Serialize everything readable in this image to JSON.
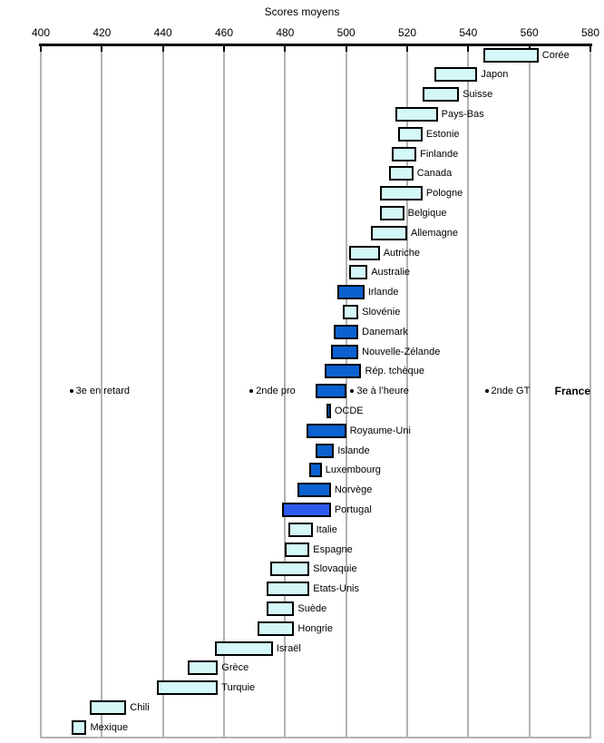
{
  "title": "Scores moyens",
  "axis": {
    "min": 400,
    "max": 580,
    "ticks": [
      400,
      420,
      440,
      460,
      480,
      500,
      520,
      540,
      560,
      580
    ]
  },
  "colors": {
    "light_bar": "#D4F7F8",
    "dark_bar": "#0B61CF",
    "portugal_bar": "#2F5AF0",
    "bar_border": "#000000",
    "grid": "#B3B3B3",
    "axis_line": "#000000",
    "text": "#000000"
  },
  "chart_data": {
    "type": "bar",
    "subtype": "horizontal-interval",
    "title": "Scores moyens",
    "xlim": [
      400,
      580
    ],
    "grid": "vertical-gridlines-every-20",
    "legend": "none",
    "rows": [
      {
        "label": "Corée",
        "low": 545,
        "high": 563,
        "style": "light"
      },
      {
        "label": "Japon",
        "low": 529,
        "high": 543,
        "style": "light"
      },
      {
        "label": "Suisse",
        "low": 525,
        "high": 537,
        "style": "light"
      },
      {
        "label": "Pays-Bas",
        "low": 516,
        "high": 530,
        "style": "light"
      },
      {
        "label": "Estonie",
        "low": 517,
        "high": 525,
        "style": "light"
      },
      {
        "label": "Finlande",
        "low": 515,
        "high": 523,
        "style": "light"
      },
      {
        "label": "Canada",
        "low": 514,
        "high": 522,
        "style": "light"
      },
      {
        "label": "Pologne",
        "low": 511,
        "high": 525,
        "style": "light"
      },
      {
        "label": "Belgique",
        "low": 511,
        "high": 519,
        "style": "light"
      },
      {
        "label": "Allemagne",
        "low": 508,
        "high": 520,
        "style": "light"
      },
      {
        "label": "Autriche",
        "low": 501,
        "high": 511,
        "style": "light"
      },
      {
        "label": "Australie",
        "low": 501,
        "high": 507,
        "style": "light"
      },
      {
        "label": "Irlande",
        "low": 497,
        "high": 506,
        "style": "dark"
      },
      {
        "label": "Slovénie",
        "low": 499,
        "high": 504,
        "style": "light"
      },
      {
        "label": "Danemark",
        "low": 496,
        "high": 504,
        "style": "dark"
      },
      {
        "label": "Nouvelle-Zélande",
        "low": 495,
        "high": 504,
        "style": "dark"
      },
      {
        "label": "Rép. tchèque",
        "low": 493,
        "high": 505,
        "style": "dark"
      },
      {
        "label": "",
        "low": 490,
        "high": 500,
        "style": "dark",
        "side_label": "France",
        "markers": [
          {
            "label": "3e en retard",
            "value": 410
          },
          {
            "label": "2nde pro",
            "value": 469
          },
          {
            "label": "3e à l’heure",
            "value": 502
          },
          {
            "label": "2nde GT",
            "value": 546
          }
        ]
      },
      {
        "label": "OCDE",
        "low": 493.5,
        "high": 495,
        "style": "dark"
      },
      {
        "label": "Royaume-Uni",
        "low": 487,
        "high": 500,
        "style": "dark"
      },
      {
        "label": "Islande",
        "low": 490,
        "high": 496,
        "style": "dark"
      },
      {
        "label": "Luxembourg",
        "low": 488,
        "high": 492,
        "style": "dark"
      },
      {
        "label": "Norvège",
        "low": 484,
        "high": 495,
        "style": "dark"
      },
      {
        "label": "Portugal",
        "low": 479,
        "high": 495,
        "style": "portugal"
      },
      {
        "label": "Italie",
        "low": 481,
        "high": 489,
        "style": "light"
      },
      {
        "label": "Espagne",
        "low": 480,
        "high": 488,
        "style": "light"
      },
      {
        "label": "Slovaquie",
        "low": 475,
        "high": 488,
        "style": "light"
      },
      {
        "label": "Etats-Unis",
        "low": 474,
        "high": 488,
        "style": "light"
      },
      {
        "label": "Suède",
        "low": 474,
        "high": 483,
        "style": "light"
      },
      {
        "label": "Hongrie",
        "low": 471,
        "high": 483,
        "style": "light"
      },
      {
        "label": "Israël",
        "low": 457,
        "high": 476,
        "style": "light"
      },
      {
        "label": "Grèce",
        "low": 448,
        "high": 458,
        "style": "light"
      },
      {
        "label": "Turquie",
        "low": 438,
        "high": 458,
        "style": "light"
      },
      {
        "label": "Chili",
        "low": 416,
        "high": 428,
        "style": "light"
      },
      {
        "label": "Mexique",
        "low": 410,
        "high": 415,
        "style": "light"
      }
    ]
  }
}
